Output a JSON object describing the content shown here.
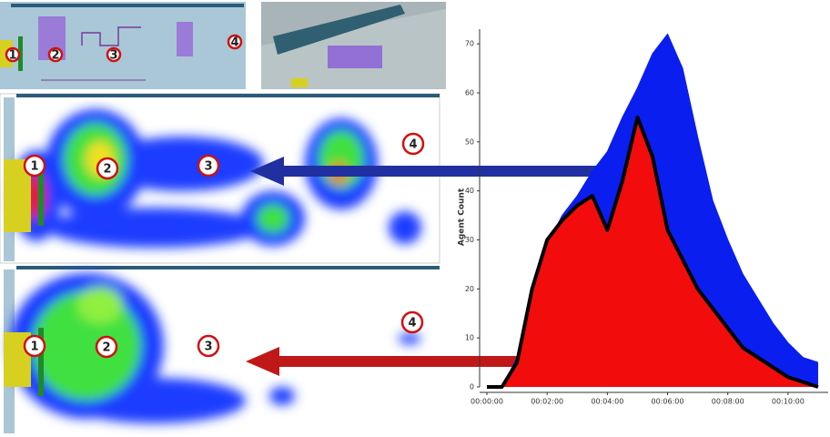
{
  "chart_data": {
    "type": "area",
    "ylabel": "Agent Count",
    "x": [
      0,
      30,
      60,
      90,
      120,
      150,
      180,
      210,
      240,
      270,
      300,
      330,
      360,
      390,
      420,
      450,
      480,
      510,
      540,
      570,
      600,
      630,
      660
    ],
    "xlim": [
      0,
      680
    ],
    "xticks": [
      {
        "value": 0,
        "label": "00:00:00"
      },
      {
        "value": 120,
        "label": "00:02:00"
      },
      {
        "value": 240,
        "label": "00:04:00"
      },
      {
        "value": 360,
        "label": "00:06:00"
      },
      {
        "value": 480,
        "label": "00:08:00"
      },
      {
        "value": 600,
        "label": "00:10:00"
      }
    ],
    "ylim": [
      0,
      73
    ],
    "yticks": [
      0,
      10,
      20,
      30,
      40,
      50,
      60,
      70
    ],
    "series": [
      {
        "color": "#0a1ef0",
        "values": [
          0,
          0,
          6,
          18,
          29,
          35,
          39,
          44,
          48,
          55,
          61,
          68,
          72,
          65,
          51,
          38,
          30,
          23,
          18,
          13,
          9,
          6,
          5
        ]
      },
      {
        "color": "#f20c0c",
        "edgecolor": "#000000",
        "values": [
          0,
          0,
          5,
          20,
          30,
          34,
          37,
          39,
          32,
          42,
          55,
          47,
          32,
          26,
          20,
          16,
          12,
          8,
          6,
          4,
          2,
          1,
          0
        ]
      }
    ]
  },
  "plan_labels": [
    "1",
    "2",
    "3",
    "4"
  ],
  "heatmap_top_labels": [
    "1",
    "2",
    "3",
    "4"
  ],
  "heatmap_bottom_labels": [
    "1",
    "2",
    "3",
    "4"
  ]
}
